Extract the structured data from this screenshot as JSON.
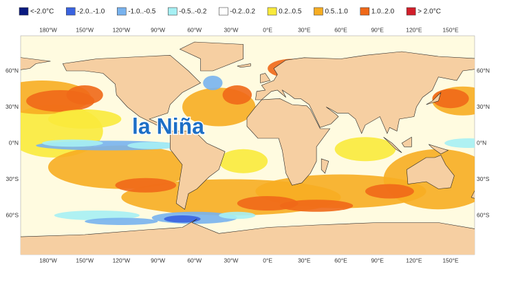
{
  "legend": {
    "items": [
      {
        "label": "<-2.0°C",
        "color": "#0a1a80"
      },
      {
        "label": "-2.0..-1.0",
        "color": "#3a63e0"
      },
      {
        "label": "-1.0..-0.5",
        "color": "#78b2ee"
      },
      {
        "label": "-0.5..-0.2",
        "color": "#a6f0f4"
      },
      {
        "label": "-0.2..0.2",
        "color": "#ffffff"
      },
      {
        "label": "0.2..0.5",
        "color": "#f9ea3c"
      },
      {
        "label": "0.5..1.0",
        "color": "#f7ad22"
      },
      {
        "label": "1.0..2.0",
        "color": "#f06818"
      },
      {
        "label": "> 2.0°C",
        "color": "#d21e2a"
      }
    ]
  },
  "axes": {
    "longitudes": [
      "180°W",
      "150°W",
      "120°W",
      "90°W",
      "60°W",
      "30°W",
      "0°E",
      "30°E",
      "60°E",
      "90°E",
      "120°E",
      "150°E"
    ],
    "latitudes": [
      "60°N",
      "30°N",
      "0°N",
      "30°S",
      "60°S"
    ]
  },
  "annotation": "la Niña"
}
